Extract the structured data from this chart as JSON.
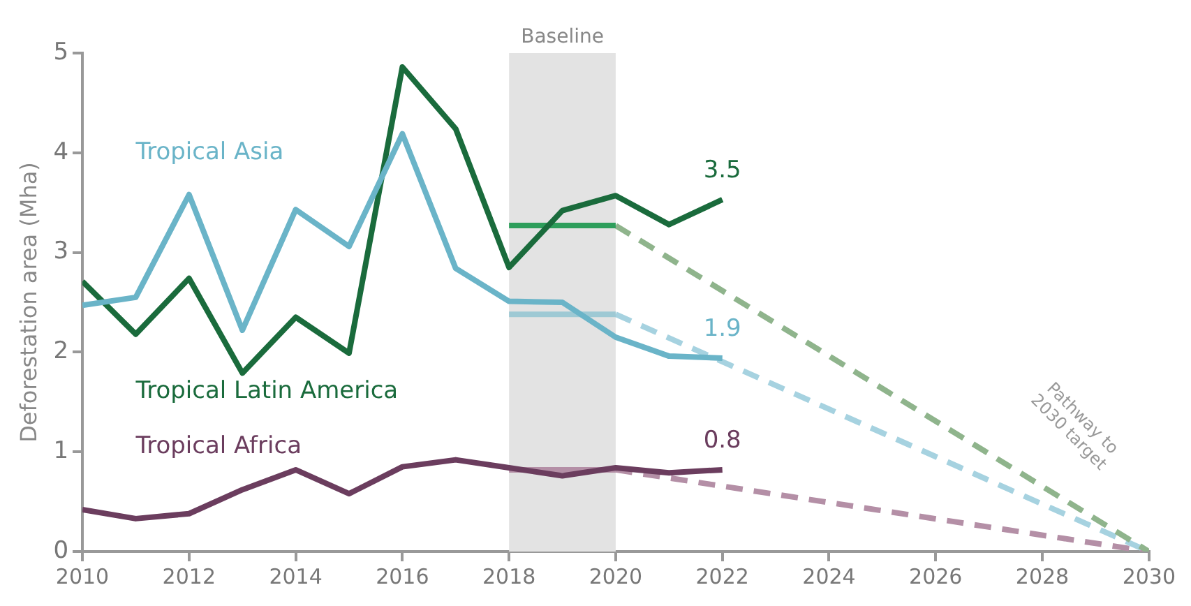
{
  "chart_data": {
    "type": "line",
    "ylabel": "Deforestation area (Mha)",
    "xlim": [
      2010,
      2030
    ],
    "xticks": [
      2010,
      2012,
      2014,
      2016,
      2018,
      2020,
      2022,
      2024,
      2026,
      2028,
      2030
    ],
    "ylim": [
      0,
      5
    ],
    "yticks": [
      0,
      1,
      2,
      3,
      4,
      5
    ],
    "grid": false,
    "legend": false,
    "marker": "none",
    "bands": [
      {
        "axis": "x",
        "from": 2018,
        "to": 2020,
        "label": "Baseline",
        "color": "#e3e3e3"
      }
    ],
    "annotations": [
      "Pathway to 2030 target"
    ],
    "series": [
      {
        "name": "Tropical Asia",
        "color": "#6ab4c8",
        "x": [
          2010,
          2011,
          2012,
          2013,
          2014,
          2015,
          2016,
          2017,
          2018,
          2019,
          2020,
          2021,
          2022
        ],
        "values": [
          2.47,
          2.55,
          3.58,
          2.22,
          3.43,
          3.06,
          4.19,
          2.84,
          2.51,
          2.5,
          2.15,
          1.96,
          1.94
        ],
        "value_labels": [
          null,
          null,
          null,
          null,
          null,
          null,
          null,
          null,
          null,
          null,
          null,
          null,
          "1.9"
        ]
      },
      {
        "name": "Tropical Latin America",
        "color": "#1a6b3c",
        "x": [
          2010,
          2011,
          2012,
          2013,
          2014,
          2015,
          2016,
          2017,
          2018,
          2019,
          2020,
          2021,
          2022
        ],
        "values": [
          2.71,
          2.18,
          2.74,
          1.79,
          2.35,
          1.99,
          4.86,
          4.24,
          2.85,
          3.42,
          3.57,
          3.28,
          3.53
        ],
        "value_labels": [
          null,
          null,
          null,
          null,
          null,
          null,
          null,
          null,
          null,
          null,
          null,
          null,
          "3.5"
        ]
      },
      {
        "name": "Tropical Africa",
        "color": "#6b3d5e",
        "x": [
          2010,
          2011,
          2012,
          2013,
          2014,
          2015,
          2016,
          2017,
          2018,
          2019,
          2020,
          2021,
          2022
        ],
        "values": [
          0.42,
          0.33,
          0.38,
          0.62,
          0.82,
          0.58,
          0.85,
          0.92,
          0.84,
          0.76,
          0.84,
          0.79,
          0.82
        ],
        "value_labels": [
          null,
          null,
          null,
          null,
          null,
          null,
          null,
          null,
          null,
          null,
          null,
          null,
          "0.8"
        ]
      },
      {
        "color": "#2e9e5b",
        "x": [
          2018,
          2020
        ],
        "values": [
          3.27,
          3.27
        ]
      },
      {
        "color": "#9ec9d4",
        "x": [
          2018,
          2020
        ],
        "values": [
          2.38,
          2.38
        ]
      },
      {
        "color": "#b48fa6",
        "x": [
          2018,
          2020
        ],
        "values": [
          0.82,
          0.82
        ]
      },
      {
        "color": "#8fb48c",
        "line_style": "dashed",
        "x": [
          2020,
          2030
        ],
        "values": [
          3.27,
          0
        ]
      },
      {
        "color": "#a6d2e0",
        "line_style": "dashed",
        "x": [
          2020,
          2030
        ],
        "values": [
          2.38,
          0
        ]
      },
      {
        "color": "#b48fa6",
        "line_style": "dashed",
        "x": [
          2020,
          2030
        ],
        "values": [
          0.82,
          0
        ]
      }
    ]
  }
}
